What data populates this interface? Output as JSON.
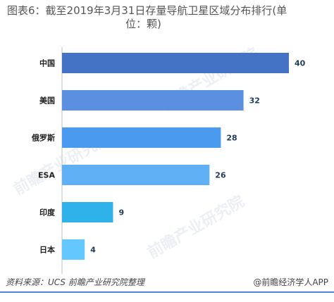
{
  "title": {
    "line1": "图表6：截至2019年3月31日存量导航卫星区域分布排行(单",
    "line2": "位：颗)"
  },
  "footer": {
    "source": "资料来源：UCS 前瞻产业研究院整理",
    "brand": "@前瞻经济学人APP"
  },
  "watermark": {
    "text": "前瞻产业研究院"
  },
  "chart_data": {
    "type": "bar",
    "orientation": "horizontal",
    "categories": [
      "中国",
      "美国",
      "俄罗斯",
      "ESA",
      "印度",
      "日本"
    ],
    "values": [
      40,
      32,
      28,
      26,
      9,
      4
    ],
    "colors": [
      "#4472c4",
      "#5b8fe0",
      "#4a9bf0",
      "#5fb0f5",
      "#2fb2ea",
      "#64c8ff"
    ],
    "value_label_color": "#1f3d5a",
    "title": "",
    "xlabel": "",
    "ylabel": "",
    "xlim": [
      0,
      40
    ],
    "grid": false,
    "legend": "none"
  }
}
